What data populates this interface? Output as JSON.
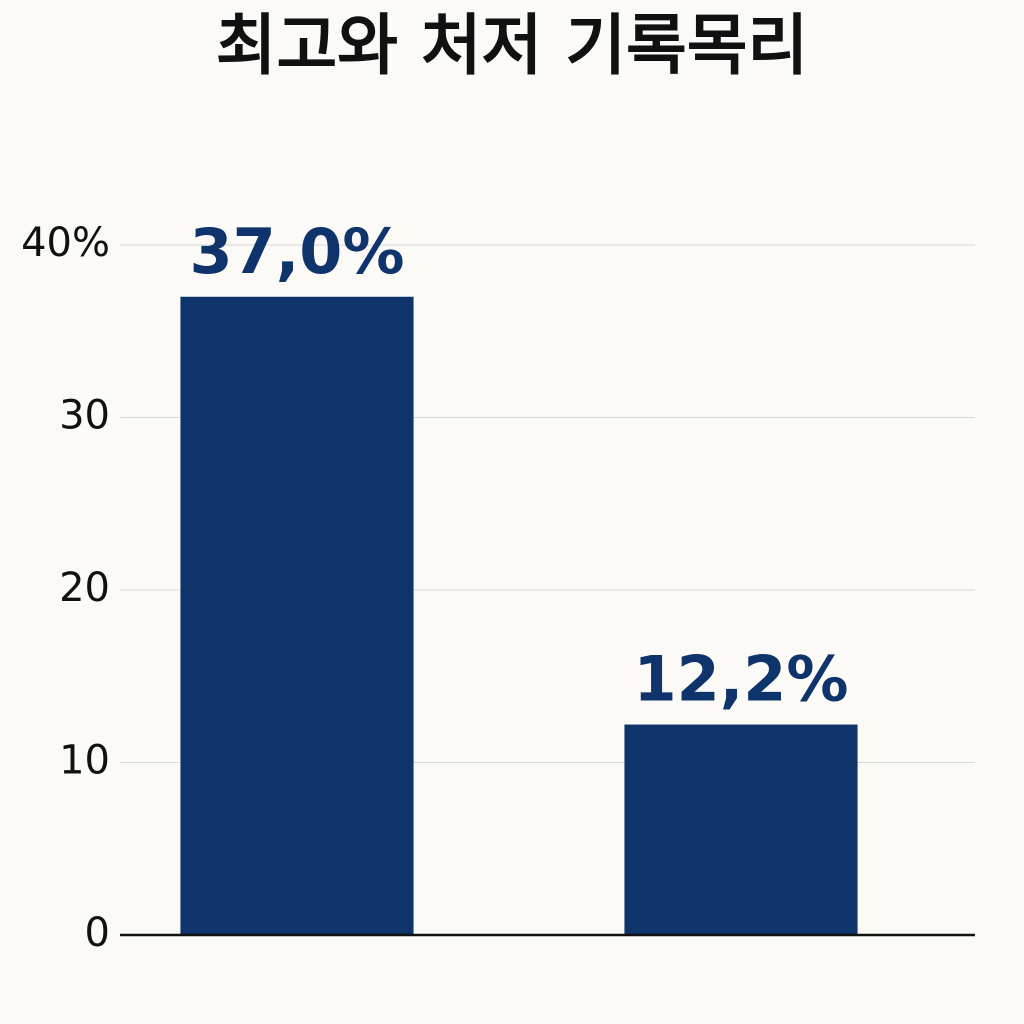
{
  "chart_data": {
    "type": "bar",
    "title": "최고와 처저 기록목리",
    "categories": [
      null,
      null
    ],
    "values": [
      37.0,
      12.2
    ],
    "value_labels": [
      "37,0%",
      "12,2%"
    ],
    "color": "#0f336b",
    "ylim": [
      0,
      44
    ],
    "yticks": [
      0,
      10,
      20,
      30,
      {
        "value": 40,
        "label": "40%"
      }
    ],
    "grid": true
  }
}
